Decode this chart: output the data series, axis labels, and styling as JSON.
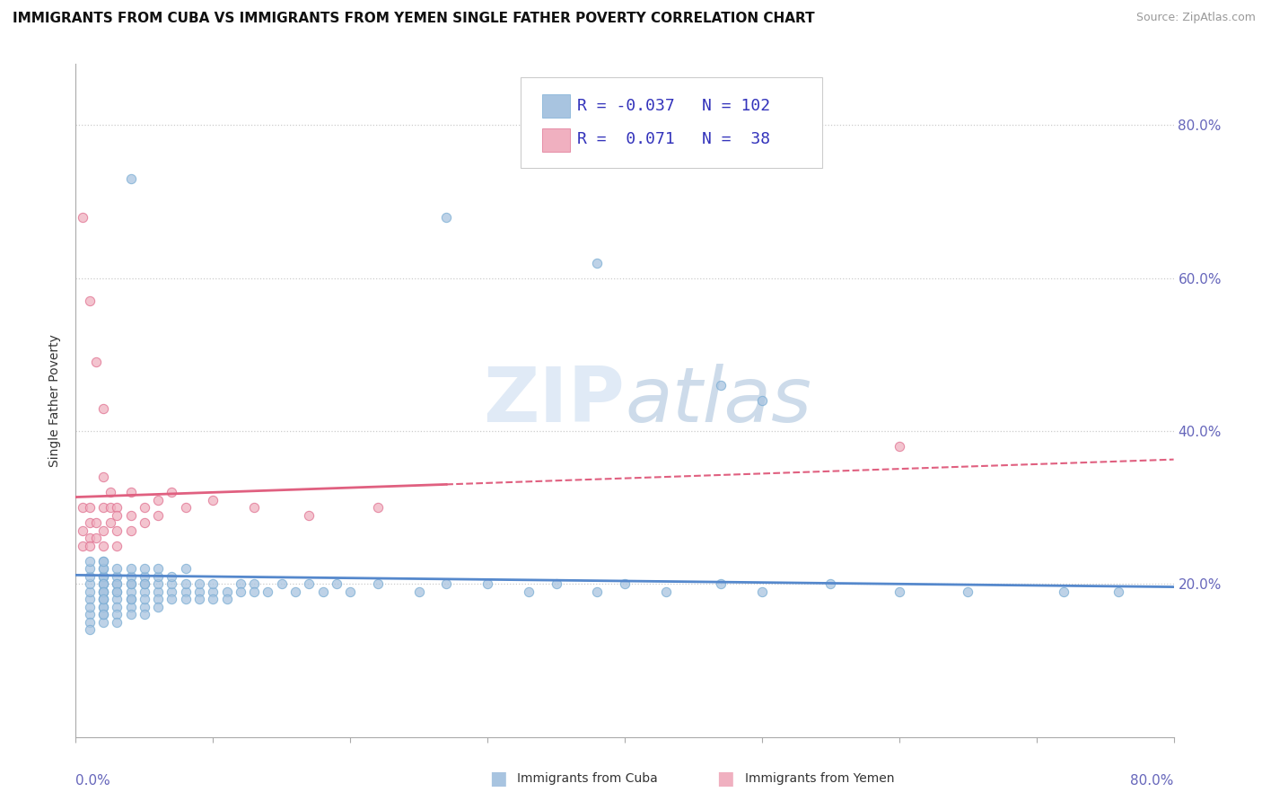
{
  "title": "IMMIGRANTS FROM CUBA VS IMMIGRANTS FROM YEMEN SINGLE FATHER POVERTY CORRELATION CHART",
  "source": "Source: ZipAtlas.com",
  "ylabel": "Single Father Poverty",
  "ytick_labels": [
    "20.0%",
    "40.0%",
    "60.0%",
    "80.0%"
  ],
  "ytick_values": [
    0.2,
    0.4,
    0.6,
    0.8
  ],
  "xlim": [
    0.0,
    0.8
  ],
  "ylim": [
    0.0,
    0.88
  ],
  "cuba_color": "#a8c4e0",
  "cuba_edge_color": "#7aadd4",
  "yemen_color": "#f0b0c0",
  "yemen_edge_color": "#e07090",
  "cuba_line_color": "#5588cc",
  "yemen_line_color": "#e06080",
  "background_color": "#ffffff",
  "grid_color": "#cccccc",
  "tick_color": "#6666bb",
  "title_fontsize": 11,
  "axis_label_fontsize": 10,
  "tick_fontsize": 11,
  "legend_fontsize": 13
}
